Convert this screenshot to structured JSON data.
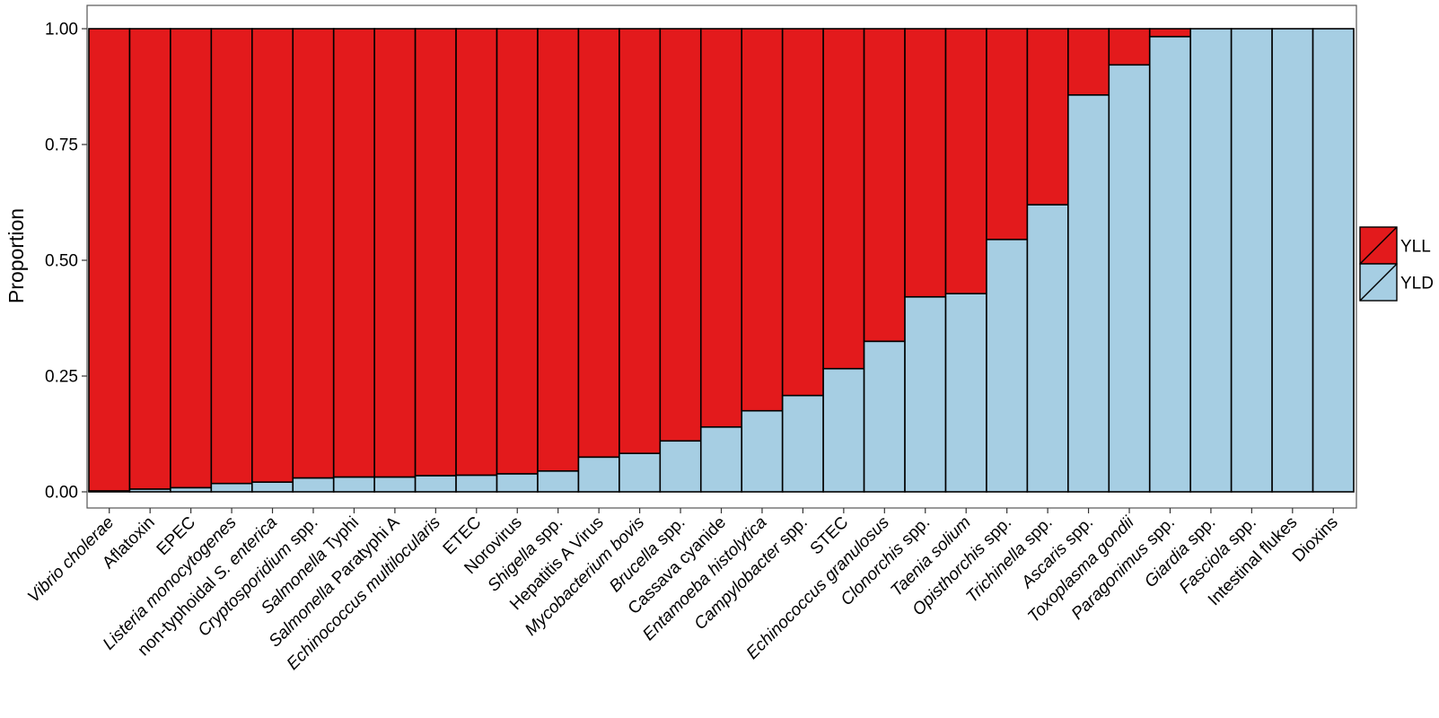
{
  "chart_data": {
    "type": "bar",
    "stacked": true,
    "ylabel": "Proportion",
    "xlabel": "",
    "ylim": [
      0,
      1
    ],
    "yticks": [
      "0.00",
      "0.25",
      "0.50",
      "0.75",
      "1.00"
    ],
    "grid": false,
    "legend_position": "right",
    "categories": [
      {
        "parts": [
          {
            "text": "Vibrio cholerae",
            "italic": true
          }
        ]
      },
      {
        "parts": [
          {
            "text": "Aflatoxin",
            "italic": false
          }
        ]
      },
      {
        "parts": [
          {
            "text": "EPEC",
            "italic": false
          }
        ]
      },
      {
        "parts": [
          {
            "text": "Listeria monocytogenes",
            "italic": true
          }
        ]
      },
      {
        "parts": [
          {
            "text": "non-typhoidal ",
            "italic": false
          },
          {
            "text": "S. enterica",
            "italic": true
          }
        ]
      },
      {
        "parts": [
          {
            "text": "Cryptosporidium",
            "italic": true
          },
          {
            "text": " spp.",
            "italic": false
          }
        ]
      },
      {
        "parts": [
          {
            "text": "Salmonella",
            "italic": true
          },
          {
            "text": " Typhi",
            "italic": false
          }
        ]
      },
      {
        "parts": [
          {
            "text": "Salmonella",
            "italic": true
          },
          {
            "text": " Paratyphi A",
            "italic": false
          }
        ]
      },
      {
        "parts": [
          {
            "text": "Echinococcus multilocularis",
            "italic": true
          }
        ]
      },
      {
        "parts": [
          {
            "text": "ETEC",
            "italic": false
          }
        ]
      },
      {
        "parts": [
          {
            "text": "Norovirus",
            "italic": false
          }
        ]
      },
      {
        "parts": [
          {
            "text": "Shigella",
            "italic": true
          },
          {
            "text": " spp.",
            "italic": false
          }
        ]
      },
      {
        "parts": [
          {
            "text": "Hepatitis A Virus",
            "italic": false
          }
        ]
      },
      {
        "parts": [
          {
            "text": "Mycobacterium bovis",
            "italic": true
          }
        ]
      },
      {
        "parts": [
          {
            "text": "Brucella",
            "italic": true
          },
          {
            "text": " spp.",
            "italic": false
          }
        ]
      },
      {
        "parts": [
          {
            "text": "Cassava cyanide",
            "italic": false
          }
        ]
      },
      {
        "parts": [
          {
            "text": "Entamoeba histolytica",
            "italic": true
          }
        ]
      },
      {
        "parts": [
          {
            "text": "Campylobacter",
            "italic": true
          },
          {
            "text": " spp.",
            "italic": false
          }
        ]
      },
      {
        "parts": [
          {
            "text": "STEC",
            "italic": false
          }
        ]
      },
      {
        "parts": [
          {
            "text": "Echinococcus granulosus",
            "italic": true
          }
        ]
      },
      {
        "parts": [
          {
            "text": "Clonorchis",
            "italic": true
          },
          {
            "text": " spp.",
            "italic": false
          }
        ]
      },
      {
        "parts": [
          {
            "text": "Taenia solium",
            "italic": true
          }
        ]
      },
      {
        "parts": [
          {
            "text": "Opisthorchis",
            "italic": true
          },
          {
            "text": " spp.",
            "italic": false
          }
        ]
      },
      {
        "parts": [
          {
            "text": "Trichinella",
            "italic": true
          },
          {
            "text": " spp.",
            "italic": false
          }
        ]
      },
      {
        "parts": [
          {
            "text": "Ascaris",
            "italic": true
          },
          {
            "text": " spp.",
            "italic": false
          }
        ]
      },
      {
        "parts": [
          {
            "text": "Toxoplasma gondii",
            "italic": true
          }
        ]
      },
      {
        "parts": [
          {
            "text": "Paragonimus",
            "italic": true
          },
          {
            "text": " spp.",
            "italic": false
          }
        ]
      },
      {
        "parts": [
          {
            "text": "Giardia",
            "italic": true
          },
          {
            "text": " spp.",
            "italic": false
          }
        ]
      },
      {
        "parts": [
          {
            "text": "Fasciola",
            "italic": true
          },
          {
            "text": " spp.",
            "italic": false
          }
        ]
      },
      {
        "parts": [
          {
            "text": "Intestinal flukes",
            "italic": false
          }
        ]
      },
      {
        "parts": [
          {
            "text": "Dioxins",
            "italic": false
          }
        ]
      }
    ],
    "series": [
      {
        "name": "YLD",
        "color": "#a6cee3",
        "values": [
          0.002,
          0.006,
          0.009,
          0.018,
          0.021,
          0.03,
          0.032,
          0.032,
          0.035,
          0.036,
          0.039,
          0.045,
          0.075,
          0.083,
          0.11,
          0.14,
          0.175,
          0.208,
          0.266,
          0.325,
          0.421,
          0.428,
          0.545,
          0.62,
          0.857,
          0.922,
          0.983,
          1.0,
          1.0,
          1.0,
          1.0
        ]
      },
      {
        "name": "YLL",
        "color": "#e31a1c",
        "values": [
          0.998,
          0.994,
          0.991,
          0.982,
          0.979,
          0.97,
          0.968,
          0.968,
          0.965,
          0.964,
          0.961,
          0.955,
          0.925,
          0.917,
          0.89,
          0.86,
          0.825,
          0.792,
          0.734,
          0.675,
          0.579,
          0.572,
          0.455,
          0.38,
          0.143,
          0.078,
          0.017,
          0.0,
          0.0,
          0.0,
          0.0
        ]
      }
    ],
    "legend": [
      {
        "name": "YLL",
        "color": "#e31a1c"
      },
      {
        "name": "YLD",
        "color": "#a6cee3"
      }
    ]
  }
}
